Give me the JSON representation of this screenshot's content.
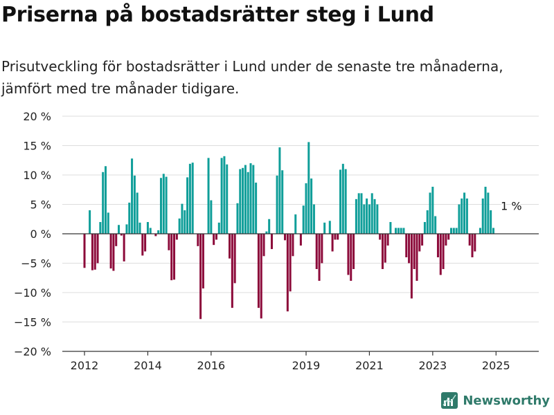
{
  "title": "Priserna på bostadsrätter steg i Lund",
  "subtitle": "Prisutveckling för bostadsrätter i Lund under de senaste tre månaderna, jämfört med tre månader tidigare.",
  "brand": "Newsworthy",
  "colors": {
    "positive": "#0f9e99",
    "negative": "#8c0a3a",
    "grid": "#dddddd",
    "axis": "#333333"
  },
  "chart_data": {
    "type": "bar",
    "ylim": [
      -20,
      20
    ],
    "yticks": [
      -20,
      -15,
      -10,
      -5,
      0,
      5,
      10,
      15,
      20
    ],
    "ytick_labels": [
      "−20 %",
      "−15 %",
      "−10 %",
      "−5 %",
      "0 %",
      "5 %",
      "10 %",
      "15 %",
      "20 %"
    ],
    "xlim": [
      2011.3,
      2026.35
    ],
    "xticks": [
      2012,
      2014,
      2016,
      2019,
      2021,
      2023,
      2025
    ],
    "xtick_labels": [
      "2012",
      "2014",
      "2016",
      "2019",
      "2021",
      "2023",
      "2025"
    ],
    "grid": true,
    "annotation": {
      "text": "1 %",
      "x": 2025.5
    },
    "start": 2012.0,
    "step": 0.0833333,
    "values": [
      -5.8,
      0,
      4,
      -6.2,
      -6.1,
      -5,
      2,
      10.5,
      11.5,
      3.6,
      -5.9,
      -6.3,
      -2.1,
      1.5,
      -0.3,
      -4.7,
      1.6,
      5.3,
      12.8,
      9.9,
      7,
      1.9,
      -3.7,
      -3,
      2,
      1,
      0,
      -0.4,
      0.6,
      9.5,
      10.2,
      9.7,
      -2.8,
      -7.9,
      -7.8,
      -1,
      2.6,
      5.1,
      4,
      9.6,
      11.9,
      12.1,
      0,
      -2.1,
      -14.5,
      -9.3,
      0,
      12.9,
      5.7,
      -1.9,
      -1,
      1.9,
      12.9,
      13.2,
      11.8,
      -4.2,
      -12.6,
      -8.4,
      5.2,
      11,
      11.2,
      11.7,
      10.5,
      12,
      11.7,
      8.7,
      -12.6,
      -14.4,
      -3.8,
      0.4,
      2.5,
      -2.6,
      0,
      9.9,
      14.7,
      10.8,
      -1.1,
      -13.2,
      -9.8,
      -3.8,
      3.3,
      0,
      -2,
      4.8,
      8.6,
      15.6,
      9.4,
      5,
      -6,
      -8,
      -5,
      1.9,
      0,
      2.2,
      -3,
      -1,
      -1,
      10.9,
      11.9,
      11,
      -7,
      -8,
      -6,
      5.9,
      6.9,
      6.9,
      5,
      6,
      5,
      6.9,
      5.9,
      5,
      -1,
      -6,
      -4.9,
      -2,
      2,
      0,
      1,
      1,
      1,
      1,
      -4,
      -5,
      -11,
      -6,
      -8,
      -3,
      -2,
      2,
      4,
      7,
      8,
      3,
      -4,
      -7,
      -6,
      -2,
      -1,
      1,
      1,
      1,
      5,
      6,
      7,
      6,
      -2,
      -4,
      -3,
      0,
      1,
      6,
      8,
      7,
      4,
      1
    ]
  }
}
